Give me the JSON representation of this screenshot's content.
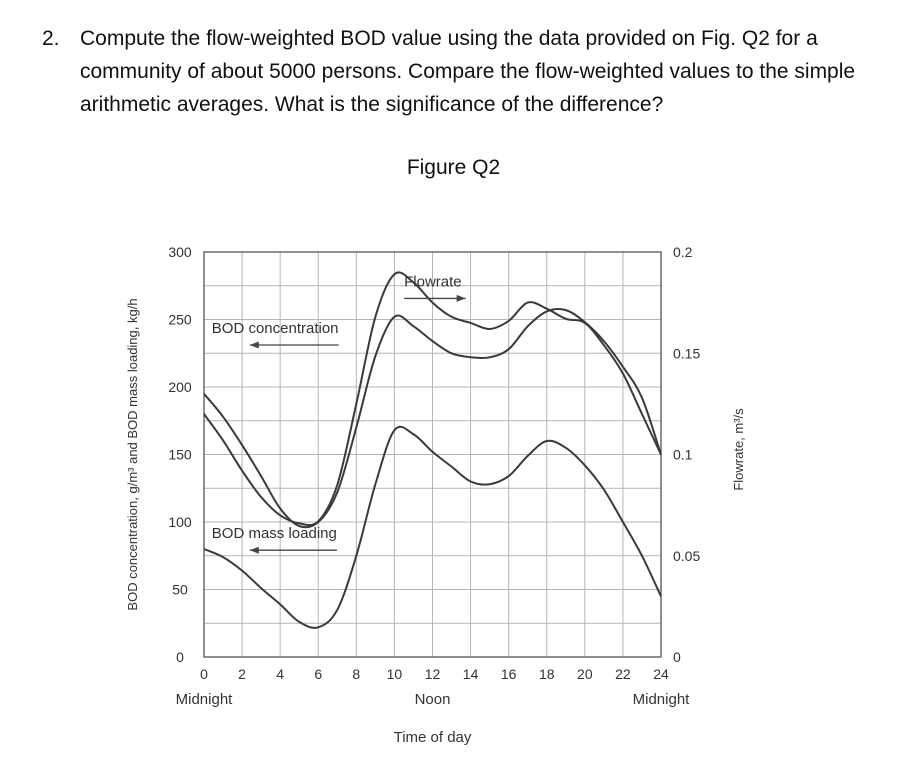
{
  "question": {
    "number": "2.",
    "text": "Compute the flow-weighted BOD value using the data provided on Fig. Q2 for a community of about 5000 persons. Compare the flow-weighted values to the simple arithmetic averages. What is the significance of the difference?"
  },
  "figure_title": "Figure Q2",
  "chart_data": {
    "type": "line",
    "title": "",
    "xlabel": "Time of day",
    "ylabel_left": "BOD concentration, g/m³ and BOD mass loading, kg/h",
    "ylabel_right": "Flowrate, m³/s",
    "xlim": [
      0,
      24
    ],
    "ylim_left": [
      0,
      300
    ],
    "ylim_right": [
      0,
      0.2
    ],
    "x_ticks": [
      0,
      2,
      4,
      6,
      8,
      10,
      12,
      14,
      16,
      18,
      20,
      22,
      24
    ],
    "x_tick_labels": [
      "0",
      "2",
      "4",
      "6",
      "8",
      "10",
      "12",
      "14",
      "16",
      "18",
      "20",
      "22",
      "24"
    ],
    "x_sublabels": [
      {
        "x": 0,
        "text": "Midnight"
      },
      {
        "x": 12,
        "text": "Noon"
      },
      {
        "x": 24,
        "text": "Midnight"
      }
    ],
    "y_left_ticks": [
      0,
      50,
      100,
      150,
      200,
      250,
      300
    ],
    "y_left_tick_labels": [
      "0",
      "50",
      "100",
      "150",
      "200",
      "250",
      "300"
    ],
    "y_right_ticks": [
      0,
      0.05,
      0.1,
      0.15,
      0.2
    ],
    "y_right_tick_labels": [
      "0",
      "0.05",
      "0.1",
      "0.15",
      "0.2"
    ],
    "grid": true,
    "series": [
      {
        "name": "Flowrate",
        "axis": "right",
        "x": [
          0,
          1,
          2,
          3,
          4,
          5,
          6,
          7,
          8,
          9,
          10,
          11,
          12,
          13,
          14,
          15,
          16,
          17,
          18,
          19,
          20,
          21,
          22,
          23,
          24
        ],
        "y": [
          0.12,
          0.107,
          0.092,
          0.079,
          0.07,
          0.066,
          0.067,
          0.085,
          0.125,
          0.168,
          0.189,
          0.185,
          0.175,
          0.168,
          0.165,
          0.162,
          0.166,
          0.175,
          0.172,
          0.167,
          0.165,
          0.154,
          0.14,
          0.12,
          0.1
        ]
      },
      {
        "name": "BOD concentration",
        "axis": "left",
        "x": [
          0,
          1,
          2,
          3,
          4,
          5,
          6,
          7,
          8,
          9,
          10,
          11,
          12,
          13,
          14,
          15,
          16,
          17,
          18,
          19,
          20,
          21,
          22,
          23,
          24
        ],
        "y": [
          195,
          178,
          157,
          134,
          110,
          97,
          100,
          122,
          170,
          223,
          252,
          245,
          234,
          225,
          222,
          222,
          228,
          245,
          256,
          257,
          248,
          234,
          215,
          192,
          150
        ]
      },
      {
        "name": "BOD mass loading",
        "axis": "left",
        "x": [
          0,
          1,
          2,
          3,
          4,
          5,
          6,
          7,
          8,
          9,
          10,
          11,
          12,
          13,
          14,
          15,
          16,
          17,
          18,
          19,
          20,
          21,
          22,
          23,
          24
        ],
        "y": [
          80,
          74,
          64,
          51,
          39,
          26,
          22,
          35,
          75,
          128,
          168,
          165,
          152,
          141,
          130,
          128,
          134,
          149,
          160,
          155,
          142,
          124,
          100,
          75,
          45
        ]
      }
    ],
    "annotations": [
      {
        "text": "Flowrate",
        "arrow": "right",
        "x": 10.3,
        "y_right": 0.183
      },
      {
        "text": "BOD concentration",
        "arrow": "left",
        "x": 0.2,
        "y_left": 240
      },
      {
        "text": "BOD mass loading",
        "arrow": "left",
        "x": 0.2,
        "y_left": 88
      }
    ]
  }
}
